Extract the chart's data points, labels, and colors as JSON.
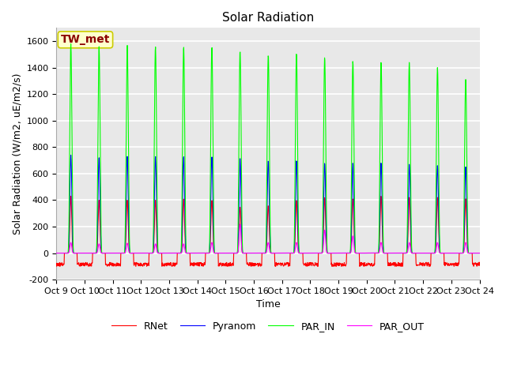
{
  "title": "Solar Radiation",
  "ylabel": "Solar Radiation (W/m2, uE/m2/s)",
  "xlabel": "Time",
  "ylim": [
    -200,
    1700
  ],
  "yticks": [
    -200,
    0,
    200,
    400,
    600,
    800,
    1000,
    1200,
    1400,
    1600
  ],
  "x_tick_labels": [
    "Oct 9",
    "Oct 10",
    "Oct 11",
    "Oct 12",
    "Oct 13",
    "Oct 14",
    "Oct 15",
    "Oct 16",
    "Oct 17",
    "Oct 18",
    "Oct 19",
    "Oct 20",
    "Oct 21",
    "Oct 22",
    "Oct 23",
    "Oct 24"
  ],
  "legend_labels": [
    "RNet",
    "Pyranom",
    "PAR_IN",
    "PAR_OUT"
  ],
  "legend_colors": [
    "red",
    "blue",
    "lime",
    "magenta"
  ],
  "annotation_text": "TW_met",
  "annotation_color": "#8b0000",
  "annotation_bg": "#ffffcc",
  "annotation_edge": "#cccc00",
  "num_days": 15,
  "steps_per_day": 96,
  "par_in_peaks": [
    1580,
    1560,
    1570,
    1560,
    1560,
    1560,
    1530,
    1500,
    1510,
    1480,
    1450,
    1440,
    1440,
    1400,
    1310
  ],
  "pyranom_peaks": [
    740,
    720,
    730,
    730,
    730,
    730,
    720,
    700,
    700,
    680,
    680,
    680,
    670,
    660,
    650
  ],
  "rnet_peaks": [
    430,
    400,
    400,
    400,
    410,
    400,
    350,
    360,
    400,
    420,
    410,
    430,
    420,
    420,
    410
  ],
  "par_out_peaks": [
    80,
    70,
    75,
    70,
    70,
    80,
    220,
    80,
    80,
    175,
    130,
    80,
    80,
    80,
    80
  ],
  "rnet_night": -80,
  "plot_bg": "#e8e8e8",
  "grid_color": "#ffffff",
  "figsize": [
    6.4,
    4.8
  ],
  "dpi": 100,
  "title_fontsize": 11,
  "axis_fontsize": 9,
  "tick_fontsize": 8,
  "legend_fontsize": 9
}
